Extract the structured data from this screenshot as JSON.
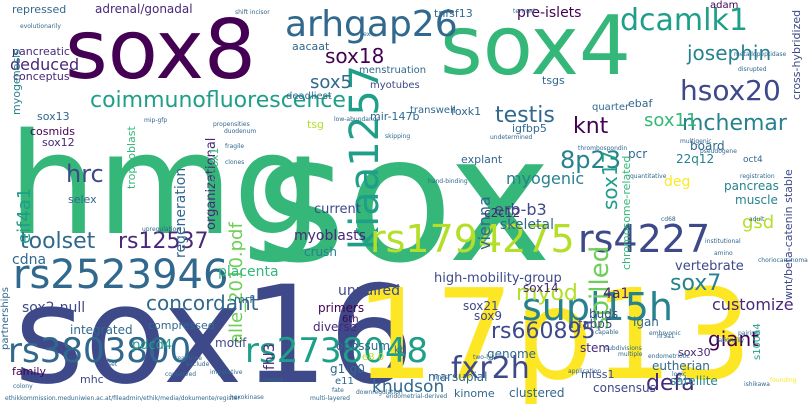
{
  "title": "",
  "colors": {
    "purple": "#440154",
    "indigo": "#482878",
    "blue": "#3e4989",
    "slate": "#31688e",
    "teal": "#26828e",
    "sea": "#1f9e89",
    "green": "#35b779",
    "lime": "#6ece58",
    "yellowgreen": "#b5de2b",
    "yellow": "#fde725"
  },
  "words": [
    {
      "text": "sox",
      "color": "green"
    },
    {
      "text": "hmg",
      "color": "green"
    },
    {
      "text": "sox16",
      "color": "blue"
    },
    {
      "text": "17p13",
      "color": "yellow"
    },
    {
      "text": "sox8",
      "color": "purple"
    },
    {
      "text": "sox4",
      "color": "green"
    },
    {
      "text": "rs2523946",
      "color": "slate"
    },
    {
      "text": "rs2738048",
      "color": "sea"
    },
    {
      "text": "rs3803800",
      "color": "slate"
    },
    {
      "text": "supl15h",
      "color": "teal"
    },
    {
      "text": "arhgap26",
      "color": "slate"
    },
    {
      "text": "kiaa1257",
      "color": "sea"
    },
    {
      "text": "rs1794275",
      "color": "yellowgreen"
    },
    {
      "text": "rs4227",
      "color": "blue"
    },
    {
      "text": "dcamlk1",
      "color": "sea"
    },
    {
      "text": "hsox20",
      "color": "blue"
    },
    {
      "text": "fxr2h",
      "color": "blue"
    },
    {
      "text": "rs660895",
      "color": "blue"
    },
    {
      "text": "coimmunofluorescence",
      "color": "sea"
    },
    {
      "text": "toolset",
      "color": "slate"
    },
    {
      "text": "rs12537",
      "color": "indigo"
    },
    {
      "text": "spilled",
      "color": "lime"
    },
    {
      "text": "myod",
      "color": "yellowgreen"
    },
    {
      "text": "defa",
      "color": "indigo"
    },
    {
      "text": "mchemar",
      "color": "teal"
    },
    {
      "text": "josephin",
      "color": "teal"
    },
    {
      "text": "testis",
      "color": "slate"
    },
    {
      "text": "8p23",
      "color": "teal"
    },
    {
      "text": "hrc",
      "color": "blue"
    },
    {
      "text": "knt",
      "color": "purple"
    },
    {
      "text": "sox7",
      "color": "teal"
    },
    {
      "text": "sox11",
      "color": "green"
    },
    {
      "text": "sox18",
      "color": "purple"
    },
    {
      "text": "sox5",
      "color": "slate"
    },
    {
      "text": "concordant",
      "color": "slate"
    },
    {
      "text": "erb-b3",
      "color": "blue"
    },
    {
      "text": "giant",
      "color": "purple"
    },
    {
      "text": "myogenic",
      "color": "teal"
    },
    {
      "text": "sox17",
      "color": "sea"
    },
    {
      "text": "eif4a1",
      "color": "sea"
    },
    {
      "text": "knudson",
      "color": "slate"
    },
    {
      "text": "sox2-null",
      "color": "blue"
    },
    {
      "text": "alle_2010.pdf",
      "color": "lime"
    },
    {
      "text": "customize",
      "color": "indigo"
    },
    {
      "text": "unpaired",
      "color": "blue"
    },
    {
      "text": "high-mobility-group",
      "color": "blue"
    },
    {
      "text": "deduced",
      "color": "indigo"
    },
    {
      "text": "pancreas",
      "color": "teal"
    },
    {
      "text": "muscle",
      "color": "teal"
    },
    {
      "text": "gsd",
      "color": "yellowgreen"
    },
    {
      "text": "cdna",
      "color": "slate"
    },
    {
      "text": "placenta",
      "color": "green"
    },
    {
      "text": "myoblasts",
      "color": "indigo"
    },
    {
      "text": "crush",
      "color": "teal"
    },
    {
      "text": "vertebrate",
      "color": "blue"
    },
    {
      "text": "vienna",
      "color": "slate"
    },
    {
      "text": "skeletal",
      "color": "slate"
    },
    {
      "text": "current",
      "color": "blue"
    },
    {
      "text": "regeneration",
      "color": "slate"
    },
    {
      "text": "organizational",
      "color": "indigo"
    },
    {
      "text": "4a1",
      "color": "indigo"
    },
    {
      "text": "buds",
      "color": "blue"
    },
    {
      "text": "sox9",
      "color": "blue"
    },
    {
      "text": "sox21",
      "color": "blue"
    },
    {
      "text": "sox14",
      "color": "indigo"
    },
    {
      "text": "fabp5",
      "color": "blue"
    },
    {
      "text": "stem",
      "color": "indigo"
    },
    {
      "text": "eutherian",
      "color": "slate"
    },
    {
      "text": "satellite",
      "color": "teal"
    },
    {
      "text": "consensus",
      "color": "blue"
    },
    {
      "text": "mtss1",
      "color": "blue"
    },
    {
      "text": "genome",
      "color": "slate"
    },
    {
      "text": "kinome",
      "color": "slate"
    },
    {
      "text": "clustered",
      "color": "slate"
    },
    {
      "text": "marsupial",
      "color": "slate"
    },
    {
      "text": "opossum",
      "color": "slate"
    },
    {
      "text": "integrated",
      "color": "slate"
    },
    {
      "text": "pdcd4",
      "color": "sea"
    },
    {
      "text": "family",
      "color": "purple"
    },
    {
      "text": "motif",
      "color": "blue"
    },
    {
      "text": "mhc",
      "color": "blue"
    },
    {
      "text": "compressed",
      "color": "slate"
    },
    {
      "text": "diverse",
      "color": "indigo"
    },
    {
      "text": "primers",
      "color": "purple"
    },
    {
      "text": "fhl3",
      "color": "indigo"
    },
    {
      "text": "g1-g0",
      "color": "slate"
    },
    {
      "text": "adrenal/gonadal",
      "color": "indigo"
    },
    {
      "text": "aacaat",
      "color": "slate"
    },
    {
      "text": "menstruation",
      "color": "slate"
    },
    {
      "text": "myotubes",
      "color": "blue"
    },
    {
      "text": "deadliest",
      "color": "slate"
    },
    {
      "text": "transwell",
      "color": "slate"
    },
    {
      "text": "tnfsf13",
      "color": "slate"
    },
    {
      "text": "pre-islets",
      "color": "purple"
    },
    {
      "text": "repressed",
      "color": "slate"
    },
    {
      "text": "pancreatic",
      "color": "indigo"
    },
    {
      "text": "conceptus",
      "color": "indigo"
    },
    {
      "text": "myogenesis",
      "color": "teal"
    },
    {
      "text": "cosmids",
      "color": "purple"
    },
    {
      "text": "sox13",
      "color": "slate"
    },
    {
      "text": "sox12",
      "color": "indigo"
    },
    {
      "text": "trophoblast",
      "color": "green"
    },
    {
      "text": "selex",
      "color": "slate"
    },
    {
      "text": "explant",
      "color": "slate"
    },
    {
      "text": "deg",
      "color": "yellow"
    },
    {
      "text": "22q12",
      "color": "teal"
    },
    {
      "text": "c2c12",
      "color": "indigo"
    },
    {
      "text": "tsgs",
      "color": "slate"
    },
    {
      "text": "quarter",
      "color": "slate"
    },
    {
      "text": "ebaf",
      "color": "slate"
    },
    {
      "text": "foxk1",
      "color": "slate"
    },
    {
      "text": "igfbp5",
      "color": "slate"
    },
    {
      "text": "pcr",
      "color": "slate"
    },
    {
      "text": "board",
      "color": "slate"
    },
    {
      "text": "adam",
      "color": "purple"
    },
    {
      "text": "mir-147b",
      "color": "slate"
    },
    {
      "text": "tsg",
      "color": "yellowgreen"
    },
    {
      "text": "meox1",
      "color": "green"
    },
    {
      "text": "igan",
      "color": "slate"
    },
    {
      "text": "e11",
      "color": "slate"
    },
    {
      "text": "kb",
      "color": "slate"
    },
    {
      "text": "6th",
      "color": "purple"
    },
    {
      "text": "mrf",
      "color": "slate"
    },
    {
      "text": "sox30",
      "color": "indigo"
    },
    {
      "text": "oct4",
      "color": "slate"
    },
    {
      "text": "cross-hybridized",
      "color": "blue"
    },
    {
      "text": "wnt/beta-catenin stable",
      "color": "blue"
    },
    {
      "text": "chromosome-related",
      "color": "green"
    },
    {
      "text": "partnerships",
      "color": "slate"
    },
    {
      "text": "s100a4",
      "color": "sea"
    },
    {
      "text": "e8.0",
      "color": "yellowgreen"
    },
    {
      "text": "ethikkommission.meduniwien.ac.at/fileadmin/ethik/media/dokumente/register",
      "color": "slate"
    },
    {
      "text": "endometrial-derived",
      "color": "slate"
    },
    {
      "text": "multi-layered",
      "color": "slate"
    },
    {
      "text": "logic",
      "color": "slate"
    },
    {
      "text": "ishikawa",
      "color": "slate"
    },
    {
      "text": "founding",
      "color": "yellow"
    },
    {
      "text": "rationally",
      "color": "slate"
    },
    {
      "text": "endometriotic",
      "color": "slate"
    },
    {
      "text": "fragile",
      "color": "slate"
    },
    {
      "text": "upregulation",
      "color": "slate"
    },
    {
      "text": "duodenum",
      "color": "slate"
    },
    {
      "text": "clones",
      "color": "slate"
    },
    {
      "text": "thrombospondin",
      "color": "slate"
    },
    {
      "text": "registration",
      "color": "slate"
    },
    {
      "text": "institutional",
      "color": "slate"
    },
    {
      "text": "amino",
      "color": "slate"
    },
    {
      "text": "multigenic",
      "color": "slate"
    },
    {
      "text": "metallopeptidase",
      "color": "slate"
    },
    {
      "text": "disrupted",
      "color": "slate"
    },
    {
      "text": "pseudogene",
      "color": "slate"
    },
    {
      "text": "low-abundance",
      "color": "slate"
    },
    {
      "text": "termed",
      "color": "slate"
    },
    {
      "text": "exclude",
      "color": "slate"
    },
    {
      "text": "conserved",
      "color": "slate"
    },
    {
      "text": "colony",
      "color": "slate"
    },
    {
      "text": "imperative",
      "color": "slate"
    },
    {
      "text": "two-hit",
      "color": "slate"
    },
    {
      "text": "application",
      "color": "slate"
    },
    {
      "text": "undetermined",
      "color": "slate"
    },
    {
      "text": "mip-gfp",
      "color": "slate"
    },
    {
      "text": "propensities",
      "color": "slate"
    },
    {
      "text": "quantitative",
      "color": "slate"
    },
    {
      "text": "hand-binding",
      "color": "slate"
    },
    {
      "text": "skipping",
      "color": "slate"
    },
    {
      "text": "real-time",
      "color": "slate"
    },
    {
      "text": "pairing",
      "color": "slate"
    },
    {
      "text": "capable",
      "color": "slate"
    },
    {
      "text": "multiple",
      "color": "slate"
    },
    {
      "text": "embryonic",
      "color": "slate"
    },
    {
      "text": "nr5a1",
      "color": "slate"
    },
    {
      "text": "subdivisions",
      "color": "slate"
    },
    {
      "text": "lines",
      "color": "slate"
    },
    {
      "text": "closest",
      "color": "slate"
    },
    {
      "text": "fate",
      "color": "slate"
    },
    {
      "text": "hexokinase",
      "color": "slate"
    },
    {
      "text": "downregulation",
      "color": "slate"
    },
    {
      "text": "shift",
      "color": "slate"
    },
    {
      "text": "incisor",
      "color": "slate"
    },
    {
      "text": "evolutionarily",
      "color": "slate"
    },
    {
      "text": "cd68",
      "color": "slate"
    },
    {
      "text": "adult",
      "color": "slate"
    },
    {
      "text": "choriocarcinoma",
      "color": "slate"
    },
    {
      "text": "sex",
      "color": "slate"
    },
    {
      "text": "set",
      "color": "slate"
    }
  ]
}
